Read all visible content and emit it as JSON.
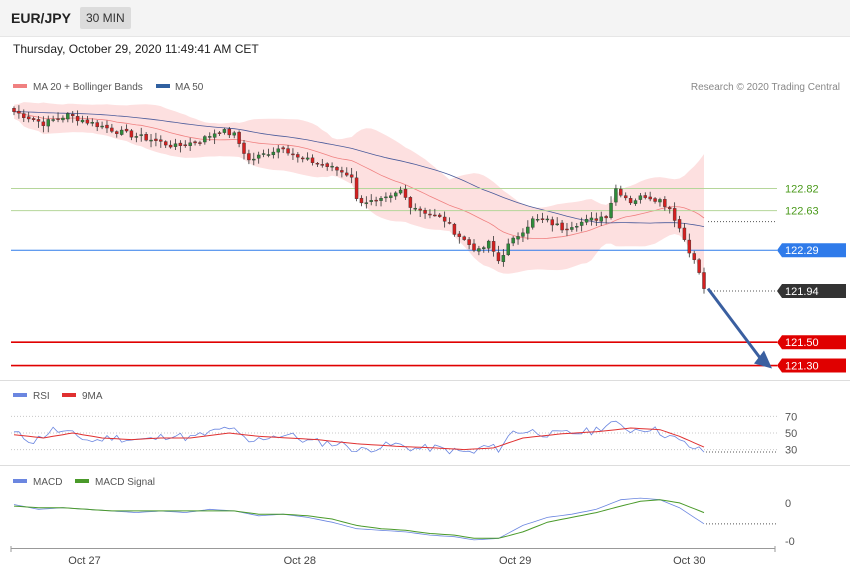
{
  "header": {
    "symbol": "EUR/JPY",
    "timeframe": "30 MIN",
    "datetime": "Thursday, October 29, 2020 11:49:41 AM CET"
  },
  "colors": {
    "ma20": "#f08080",
    "band_fill": "#fde0e0",
    "ma50": "#4a5a9a",
    "up_candle": "#2e8b3a",
    "down_candle": "#d42020",
    "resistance_line": "#b5d69a",
    "pivot_blue": "#2f7bea",
    "support_red": "#e00000",
    "current_dark": "#333333",
    "arrow": "#3a5fa0",
    "rsi_line": "#6b86e0",
    "rsi_ma": "#e03030",
    "macd_line": "#6b86e0",
    "macd_signal": "#4a9a2a"
  },
  "chart_data": [
    {
      "type": "candlestick",
      "legend": [
        {
          "label": "MA 20 + Bollinger Bands",
          "color": "#f08080"
        },
        {
          "label": "MA 50",
          "color": "#3060a0"
        }
      ],
      "credit": "Research © 2020 Trading Central",
      "x_tick_labels": [
        "Oct 27",
        "Oct 28",
        "Oct 29",
        "Oct 30"
      ],
      "x_tick_index": [
        14,
        58,
        102,
        138
      ],
      "bar_count": 150,
      "ylim": [
        121.21,
        123.58
      ],
      "price_levels": [
        {
          "value": "122.82",
          "kind": "resistance",
          "color": "#b5d69a",
          "text_color": "#4a9a1a"
        },
        {
          "value": "122.63",
          "kind": "resistance",
          "color": "#b5d69a",
          "text_color": "#4a9a1a"
        },
        {
          "value": "122.29",
          "kind": "pivot",
          "color": "#2f7bea",
          "text_color": "#ffffff"
        },
        {
          "value": "121.94",
          "kind": "last",
          "color": "#333333",
          "text_color": "#ffffff"
        },
        {
          "value": "121.50",
          "kind": "support",
          "color": "#e00000",
          "text_color": "#ffffff"
        },
        {
          "value": "121.30",
          "kind": "support",
          "color": "#e00000",
          "text_color": "#ffffff"
        }
      ],
      "close_anchors": [
        [
          0,
          123.48
        ],
        [
          6,
          123.38
        ],
        [
          11,
          123.45
        ],
        [
          16,
          123.38
        ],
        [
          22,
          123.3
        ],
        [
          28,
          123.24
        ],
        [
          33,
          123.18
        ],
        [
          38,
          123.23
        ],
        [
          42,
          123.32
        ],
        [
          45,
          123.28
        ],
        [
          48,
          123.06
        ],
        [
          52,
          123.13
        ],
        [
          55,
          123.18
        ],
        [
          58,
          123.08
        ],
        [
          62,
          123.04
        ],
        [
          66,
          122.98
        ],
        [
          69,
          122.93
        ],
        [
          70,
          122.72
        ],
        [
          74,
          122.7
        ],
        [
          77,
          122.74
        ],
        [
          79,
          122.8
        ],
        [
          81,
          122.68
        ],
        [
          85,
          122.6
        ],
        [
          88,
          122.55
        ],
        [
          90,
          122.45
        ],
        [
          93,
          122.34
        ],
        [
          95,
          122.28
        ],
        [
          97,
          122.35
        ],
        [
          99,
          122.2
        ],
        [
          101,
          122.33
        ],
        [
          103,
          122.42
        ],
        [
          106,
          122.55
        ],
        [
          109,
          122.54
        ],
        [
          112,
          122.48
        ],
        [
          115,
          122.52
        ],
        [
          118,
          122.55
        ],
        [
          121,
          122.59
        ],
        [
          123,
          122.82
        ],
        [
          126,
          122.71
        ],
        [
          129,
          122.76
        ],
        [
          132,
          122.72
        ],
        [
          134,
          122.65
        ],
        [
          136,
          122.48
        ],
        [
          138,
          122.29
        ],
        [
          140,
          122.1
        ],
        [
          141,
          121.96
        ]
      ]
    },
    {
      "type": "line",
      "title": "RSI",
      "legend": [
        {
          "label": "RSI",
          "color": "#6b86e0"
        },
        {
          "label": "9MA",
          "color": "#e03030"
        }
      ],
      "y_ticks": [
        "70",
        "50",
        "30"
      ],
      "ylim": [
        15,
        85
      ],
      "rsi_anchors": [
        [
          0,
          50
        ],
        [
          4,
          40
        ],
        [
          8,
          54
        ],
        [
          12,
          48
        ],
        [
          16,
          40
        ],
        [
          20,
          45
        ],
        [
          24,
          42
        ],
        [
          28,
          42
        ],
        [
          32,
          48
        ],
        [
          36,
          44
        ],
        [
          40,
          50
        ],
        [
          44,
          57
        ],
        [
          48,
          38
        ],
        [
          52,
          46
        ],
        [
          56,
          48
        ],
        [
          60,
          40
        ],
        [
          64,
          38
        ],
        [
          68,
          36
        ],
        [
          70,
          28
        ],
        [
          74,
          33
        ],
        [
          78,
          36
        ],
        [
          82,
          31
        ],
        [
          86,
          32
        ],
        [
          90,
          28
        ],
        [
          94,
          26
        ],
        [
          96,
          34
        ],
        [
          99,
          31
        ],
        [
          102,
          52
        ],
        [
          106,
          52
        ],
        [
          110,
          48
        ],
        [
          114,
          50
        ],
        [
          118,
          52
        ],
        [
          122,
          62
        ],
        [
          126,
          54
        ],
        [
          130,
          56
        ],
        [
          134,
          46
        ],
        [
          138,
          34
        ],
        [
          141,
          27
        ]
      ],
      "ma9_anchors": [
        [
          0,
          48
        ],
        [
          6,
          44
        ],
        [
          12,
          50
        ],
        [
          18,
          44
        ],
        [
          24,
          42
        ],
        [
          30,
          44
        ],
        [
          36,
          44
        ],
        [
          44,
          50
        ],
        [
          50,
          46
        ],
        [
          56,
          44
        ],
        [
          62,
          42
        ],
        [
          70,
          37
        ],
        [
          78,
          34
        ],
        [
          86,
          32
        ],
        [
          92,
          30
        ],
        [
          98,
          32
        ],
        [
          104,
          44
        ],
        [
          112,
          49
        ],
        [
          120,
          52
        ],
        [
          126,
          56
        ],
        [
          132,
          54
        ],
        [
          136,
          46
        ],
        [
          141,
          33
        ]
      ]
    },
    {
      "type": "line",
      "title": "MACD",
      "legend": [
        {
          "label": "MACD",
          "color": "#6b86e0"
        },
        {
          "label": "MACD Signal",
          "color": "#4a9a2a"
        }
      ],
      "y_ticks": [
        "0",
        "-0"
      ],
      "ylim": [
        -0.28,
        0.08
      ],
      "macd_anchors": [
        [
          0,
          -0.01
        ],
        [
          5,
          -0.04
        ],
        [
          10,
          -0.03
        ],
        [
          15,
          -0.04
        ],
        [
          20,
          -0.05
        ],
        [
          25,
          -0.06
        ],
        [
          30,
          -0.05
        ],
        [
          35,
          -0.06
        ],
        [
          40,
          -0.04
        ],
        [
          45,
          -0.05
        ],
        [
          50,
          -0.08
        ],
        [
          55,
          -0.07
        ],
        [
          60,
          -0.09
        ],
        [
          65,
          -0.12
        ],
        [
          70,
          -0.16
        ],
        [
          75,
          -0.17
        ],
        [
          80,
          -0.18
        ],
        [
          85,
          -0.2
        ],
        [
          90,
          -0.21
        ],
        [
          94,
          -0.23
        ],
        [
          99,
          -0.22
        ],
        [
          104,
          -0.14
        ],
        [
          109,
          -0.09
        ],
        [
          114,
          -0.07
        ],
        [
          119,
          -0.04
        ],
        [
          124,
          0.02
        ],
        [
          128,
          0.03
        ],
        [
          132,
          0.02
        ],
        [
          136,
          -0.03
        ],
        [
          141,
          -0.13
        ]
      ],
      "signal_anchors": [
        [
          0,
          -0.02
        ],
        [
          5,
          -0.03
        ],
        [
          10,
          -0.03
        ],
        [
          15,
          -0.04
        ],
        [
          20,
          -0.05
        ],
        [
          25,
          -0.05
        ],
        [
          30,
          -0.05
        ],
        [
          35,
          -0.05
        ],
        [
          40,
          -0.05
        ],
        [
          45,
          -0.05
        ],
        [
          50,
          -0.07
        ],
        [
          55,
          -0.07
        ],
        [
          60,
          -0.08
        ],
        [
          65,
          -0.1
        ],
        [
          70,
          -0.14
        ],
        [
          75,
          -0.16
        ],
        [
          80,
          -0.17
        ],
        [
          85,
          -0.19
        ],
        [
          90,
          -0.2
        ],
        [
          94,
          -0.22
        ],
        [
          99,
          -0.22
        ],
        [
          104,
          -0.18
        ],
        [
          109,
          -0.12
        ],
        [
          114,
          -0.09
        ],
        [
          119,
          -0.06
        ],
        [
          124,
          -0.02
        ],
        [
          128,
          0.01
        ],
        [
          132,
          0.02
        ],
        [
          136,
          0.0
        ],
        [
          141,
          -0.06
        ]
      ]
    }
  ]
}
